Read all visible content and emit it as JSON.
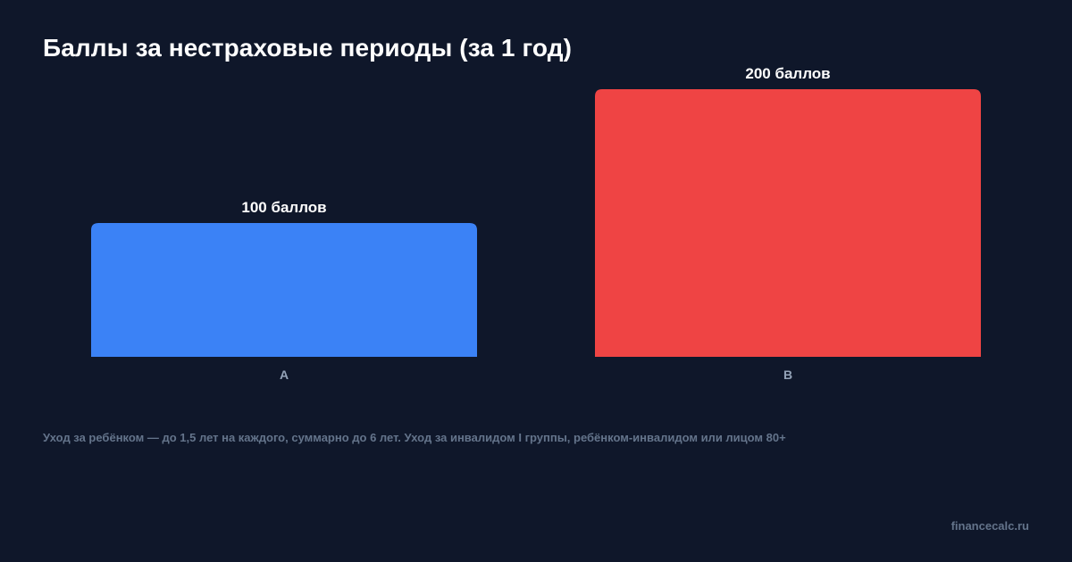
{
  "colors": {
    "background": "#0f172a",
    "bar_a": "#3b82f6",
    "bar_b": "#ef4444",
    "value_label": "#ffffff",
    "category_label": "#94a3b8",
    "muted_text": "#64748b"
  },
  "chart_data": {
    "type": "bar",
    "title": "Баллы за нестраховые периоды (за 1 год)",
    "categories": [
      "A",
      "B"
    ],
    "values": [
      100,
      200
    ],
    "value_labels": [
      "100 баллов",
      "200 баллов"
    ],
    "bar_colors": [
      "#3b82f6",
      "#ef4444"
    ],
    "xlabel": "",
    "ylabel": "",
    "ylim": [
      0,
      200
    ],
    "grid": false,
    "legend": "none"
  },
  "footnote": "Уход за ребёнком — до 1,5 лет на каждого, суммарно до 6 лет. Уход за инвалидом I группы, ребёнком-инвалидом или лицом 80+",
  "brand": "financecalc.ru"
}
